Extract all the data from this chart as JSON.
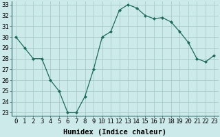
{
  "title": "",
  "xlabel": "Humidex (Indice chaleur)",
  "ylabel": "",
  "x": [
    0,
    1,
    2,
    3,
    4,
    5,
    6,
    7,
    8,
    9,
    10,
    11,
    12,
    13,
    14,
    15,
    16,
    17,
    18,
    19,
    20,
    21,
    22,
    23
  ],
  "y": [
    30,
    29,
    28,
    28,
    26,
    25,
    23,
    23,
    24.5,
    27,
    30,
    30.5,
    32.5,
    33,
    32.7,
    32,
    31.7,
    31.8,
    31.4,
    30.5,
    29.5,
    28,
    27.7,
    28.3
  ],
  "line_color": "#1a6b5a",
  "marker": "D",
  "marker_size": 2.0,
  "bg_color": "#cceaea",
  "grid_color": "#aacccc",
  "ylim_min": 23,
  "ylim_max": 33,
  "yticks": [
    23,
    24,
    25,
    26,
    27,
    28,
    29,
    30,
    31,
    32,
    33
  ],
  "xticks": [
    0,
    1,
    2,
    3,
    4,
    5,
    6,
    7,
    8,
    9,
    10,
    11,
    12,
    13,
    14,
    15,
    16,
    17,
    18,
    19,
    20,
    21,
    22,
    23
  ],
  "tick_fontsize": 6.5,
  "xlabel_fontsize": 7.5,
  "linewidth": 0.9
}
